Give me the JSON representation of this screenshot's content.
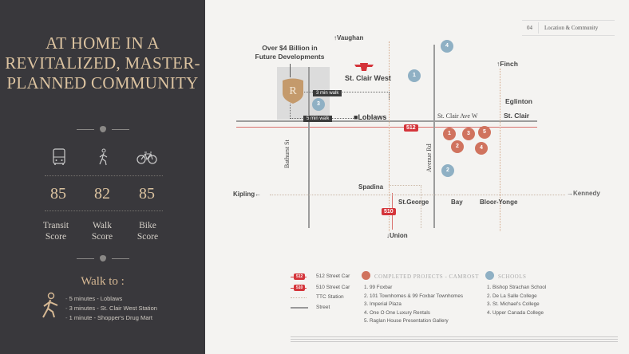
{
  "left": {
    "title": "AT HOME IN A REVITALIZED, MASTER-PLANNED COMMUNITY",
    "scores": [
      {
        "icon": "bus-icon",
        "value": "85",
        "label": "Transit Score"
      },
      {
        "icon": "walking-person-icon",
        "value": "82",
        "label": "Walk Score"
      },
      {
        "icon": "bicycle-icon",
        "value": "85",
        "label": "Bike Score"
      }
    ],
    "walk_title": "Walk to :",
    "walk_items": [
      "5 minutes - Loblaws",
      "3 minutes - St. Clair West Station",
      "1 minute - Shopper's Drug Mart"
    ]
  },
  "header": {
    "page": "04",
    "section": "Location & Community"
  },
  "map": {
    "development_label": "Over $4 Billion in Future Developments",
    "vaughan": "↑Vaughan",
    "st_clair_west": "St. Clair West",
    "walk3": "3 min walk",
    "walk5": "5 min walk",
    "loblaws": "Loblaws",
    "streetcar_512": "512",
    "streetcar_510": "510",
    "st_clair_ave": "St. Clair Ave W",
    "st_clair": "St. Clair",
    "eglinton": "Eglinton",
    "finch": "↑Finch",
    "bathurst": "Bathurst St",
    "avenue_rd": "Avenue Rd",
    "spadina": "Spadina",
    "kipling": "Kipling←",
    "st_george": "St.George",
    "bay": "Bay",
    "bloor_yonge": "Bloor-Yonge",
    "kennedy": "→Kennedy",
    "union": "↓Union",
    "projects": [
      "1",
      "2",
      "3",
      "4",
      "5"
    ],
    "schools": [
      "1",
      "2",
      "3",
      "4"
    ],
    "colors": {
      "project": "#d0735e",
      "school": "#8fb0c4",
      "streetcar": "#d4343a",
      "accent": "#d7b994",
      "panel": "#39383c"
    }
  },
  "legend": {
    "streetcar_512": "512 Street Car",
    "streetcar_510": "510 Street Car",
    "ttc": "TTC Station",
    "street": "Street",
    "projects_title": "COMPLETED PROJECTS - CAMROST",
    "projects": [
      "1.  99 Foxbar",
      "2.  101 Townhomes & 99 Foxbar Townhomes",
      "3.  Imperial Plaza",
      "4.  One O One Luxury Rentals",
      "5.  Raglan House Presentation Gallery"
    ],
    "schools_title": "SCHOOLS",
    "schools": [
      "1.  Bishop Strachan School",
      "2.  De La Salle College",
      "3.  St. Michael's College",
      "4.  Upper Canada College"
    ]
  }
}
